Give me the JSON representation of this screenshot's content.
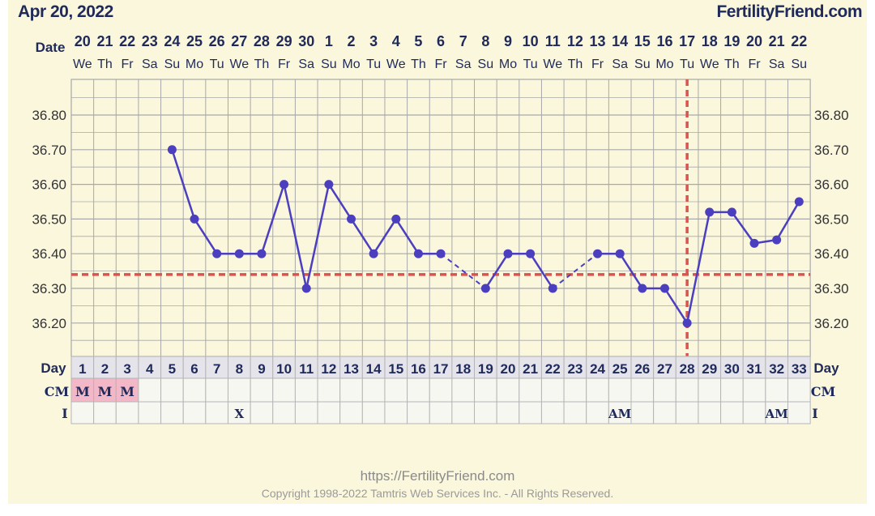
{
  "header": {
    "date": "Apr 20, 2022",
    "brand": "FertilityFriend.com"
  },
  "footer": {
    "url": "https://FertilityFriend.com",
    "copyright": "Copyright 1998-2022 Tamtris Web Services Inc. - All Rights Reserved."
  },
  "colors": {
    "background": "#faf7dd",
    "grid": "#a8a8a8",
    "temp_line": "#4b3fbf",
    "coverline": "#d9534f",
    "ovulation_line": "#d9534f",
    "menses_cell": "#f2b8c8",
    "text": "#1f2a5a"
  },
  "chart_data": {
    "type": "line",
    "row_labels": {
      "date": "Date",
      "day": "Day",
      "cm": "CM",
      "intercourse": "I"
    },
    "dates": [
      "20",
      "21",
      "22",
      "23",
      "24",
      "25",
      "26",
      "27",
      "28",
      "29",
      "30",
      "1",
      "2",
      "3",
      "4",
      "5",
      "6",
      "7",
      "8",
      "9",
      "10",
      "11",
      "12",
      "13",
      "14",
      "15",
      "16",
      "17",
      "18",
      "19",
      "20",
      "21",
      "22"
    ],
    "weekdays": [
      "We",
      "Th",
      "Fr",
      "Sa",
      "Su",
      "Mo",
      "Tu",
      "We",
      "Th",
      "Fr",
      "Sa",
      "Su",
      "Mo",
      "Tu",
      "We",
      "Th",
      "Fr",
      "Sa",
      "Su",
      "Mo",
      "Tu",
      "We",
      "Th",
      "Fr",
      "Sa",
      "Su",
      "Mo",
      "Tu",
      "We",
      "Th",
      "Fr",
      "Sa",
      "Su"
    ],
    "days": [
      1,
      2,
      3,
      4,
      5,
      6,
      7,
      8,
      9,
      10,
      11,
      12,
      13,
      14,
      15,
      16,
      17,
      18,
      19,
      20,
      21,
      22,
      23,
      24,
      25,
      26,
      27,
      28,
      29,
      30,
      31,
      32,
      33
    ],
    "y_ticks": [
      "36.80",
      "36.70",
      "36.60",
      "36.50",
      "36.40",
      "36.30",
      "36.20"
    ],
    "ylim": [
      36.1,
      36.9
    ],
    "series": [
      {
        "values": [
          null,
          null,
          null,
          null,
          36.7,
          36.5,
          36.4,
          36.4,
          36.4,
          36.6,
          36.3,
          36.6,
          36.5,
          36.4,
          36.5,
          36.4,
          36.4,
          null,
          36.3,
          36.4,
          36.4,
          36.3,
          null,
          36.4,
          36.4,
          36.3,
          36.3,
          36.2,
          36.52,
          36.52,
          36.43,
          36.44,
          36.55
        ]
      }
    ],
    "dashed_gaps": [
      [
        17,
        19
      ],
      [
        22,
        24
      ]
    ],
    "coverline": 36.34,
    "ovulation_day": 28,
    "cm": [
      "M",
      "M",
      "M",
      "",
      "",
      "",
      "",
      "",
      "",
      "",
      "",
      "",
      "",
      "",
      "",
      "",
      "",
      "",
      "",
      "",
      "",
      "",
      "",
      "",
      "",
      "",
      "",
      "",
      "",
      "",
      "",
      "",
      ""
    ],
    "intercourse": [
      "",
      "",
      "",
      "",
      "",
      "",
      "",
      "X",
      "",
      "",
      "",
      "",
      "",
      "",
      "",
      "",
      "",
      "",
      "",
      "",
      "",
      "",
      "",
      "",
      "AM",
      "",
      "",
      "",
      "",
      "",
      "",
      "AM",
      ""
    ]
  }
}
